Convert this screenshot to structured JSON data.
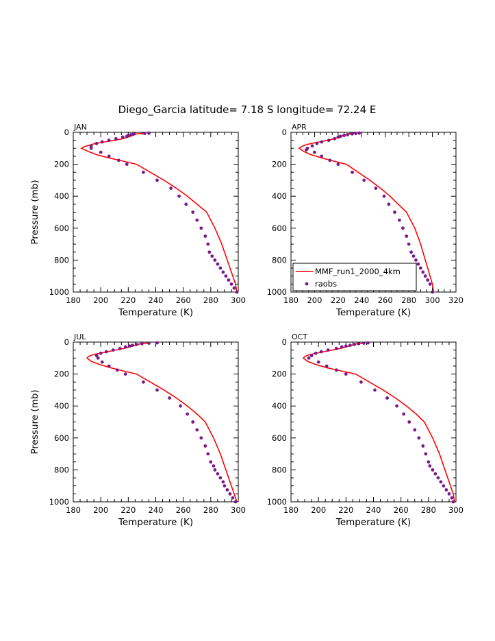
{
  "figure": {
    "title": "Diego_Garcia  latitude= 7.18 S longitude= 72.24 E"
  },
  "colors": {
    "model": "#ff0000",
    "obs": "#7a1a8a",
    "axis": "#000000"
  },
  "chart_data": [
    {
      "type": "line",
      "panel": "JAN",
      "xlabel": "Temperature (K)",
      "ylabel": "Pressure (mb)",
      "xlim": [
        180,
        300
      ],
      "ylim": [
        0,
        1000
      ],
      "y_inverted": true,
      "xticks": [
        180,
        200,
        220,
        240,
        260,
        280,
        300
      ],
      "yticks": [
        0,
        200,
        400,
        600,
        800,
        1000
      ],
      "legend": null,
      "series": [
        {
          "name": "MMF_run1_2000_4km",
          "style": "line",
          "temperature": [
            232,
            226,
            223,
            220,
            216,
            210,
            203,
            196,
            192,
            188,
            186,
            191,
            197,
            206,
            216,
            226,
            236,
            246,
            255,
            263,
            270,
            277,
            283,
            288,
            292,
            296,
            298,
            299
          ],
          "pressure": [
            5,
            10,
            20,
            30,
            40,
            50,
            60,
            70,
            80,
            90,
            100,
            120,
            140,
            160,
            180,
            200,
            250,
            300,
            350,
            400,
            450,
            500,
            600,
            700,
            800,
            900,
            950,
            1000
          ]
        },
        {
          "name": "raobs",
          "style": "points",
          "temperature": [
            235,
            232,
            224,
            222,
            220,
            219,
            216,
            211,
            206,
            201,
            197,
            193,
            193,
            200,
            206,
            213,
            219,
            231,
            241,
            251,
            257,
            262,
            267,
            270,
            273,
            276,
            278,
            279,
            281,
            283,
            285,
            287,
            289,
            291,
            293,
            295,
            297,
            299
          ],
          "pressure": [
            5,
            7,
            10,
            15,
            20,
            25,
            30,
            40,
            50,
            60,
            70,
            85,
            100,
            125,
            150,
            175,
            200,
            250,
            300,
            350,
            400,
            450,
            500,
            550,
            600,
            650,
            700,
            750,
            775,
            800,
            825,
            850,
            875,
            900,
            925,
            950,
            975,
            1000
          ]
        }
      ]
    },
    {
      "type": "line",
      "panel": "APR",
      "xlabel": "Temperature (K)",
      "ylabel": "",
      "xlim": [
        180,
        320
      ],
      "ylim": [
        0,
        1000
      ],
      "y_inverted": true,
      "xticks": [
        180,
        200,
        220,
        240,
        260,
        280,
        300,
        320
      ],
      "yticks": [
        0,
        200,
        400,
        600,
        800,
        1000
      ],
      "legend": "bottom-left",
      "series": [
        {
          "name": "MMF_run1_2000_4km",
          "style": "line",
          "temperature": [
            234,
            228,
            224,
            221,
            217,
            211,
            204,
            197,
            192,
            189,
            187,
            191,
            197,
            206,
            216,
            227,
            237,
            247,
            256,
            264,
            271,
            278,
            285,
            290,
            294,
            298,
            300,
            301
          ],
          "pressure": [
            5,
            10,
            20,
            30,
            40,
            50,
            60,
            70,
            80,
            90,
            100,
            120,
            140,
            160,
            180,
            200,
            250,
            300,
            350,
            400,
            450,
            500,
            600,
            700,
            800,
            900,
            950,
            1000
          ]
        },
        {
          "name": "raobs",
          "style": "points",
          "temperature": [
            238,
            235,
            232,
            228,
            225,
            222,
            220,
            217,
            212,
            206,
            202,
            198,
            194,
            193,
            200,
            206,
            213,
            220,
            232,
            242,
            252,
            259,
            263,
            268,
            272,
            275,
            278,
            280,
            282,
            284,
            286,
            288,
            290,
            292,
            294,
            296,
            298,
            300
          ],
          "pressure": [
            5,
            7,
            10,
            15,
            20,
            25,
            30,
            40,
            50,
            60,
            70,
            85,
            100,
            110,
            125,
            150,
            175,
            200,
            250,
            300,
            350,
            400,
            450,
            500,
            550,
            600,
            650,
            700,
            750,
            775,
            800,
            825,
            850,
            875,
            900,
            925,
            950,
            1000
          ]
        }
      ]
    },
    {
      "type": "line",
      "panel": "JUL",
      "xlabel": "Temperature (K)",
      "ylabel": "Pressure (mb)",
      "xlim": [
        180,
        300
      ],
      "ylim": [
        0,
        1000
      ],
      "y_inverted": true,
      "xticks": [
        180,
        200,
        220,
        240,
        260,
        280,
        300
      ],
      "yticks": [
        0,
        200,
        400,
        600,
        800,
        1000
      ],
      "legend": null,
      "series": [
        {
          "name": "MMF_run1_2000_4km",
          "style": "line",
          "temperature": [
            235,
            229,
            225,
            221,
            217,
            211,
            205,
            199,
            194,
            191,
            190,
            193,
            199,
            207,
            216,
            226,
            236,
            246,
            255,
            263,
            270,
            276,
            282,
            287,
            291,
            295,
            297,
            299
          ],
          "pressure": [
            5,
            10,
            20,
            30,
            40,
            50,
            60,
            70,
            80,
            90,
            100,
            120,
            140,
            160,
            180,
            200,
            250,
            300,
            350,
            400,
            450,
            500,
            600,
            700,
            800,
            900,
            950,
            1000
          ]
        },
        {
          "name": "raobs",
          "style": "points",
          "temperature": [
            241,
            235,
            230,
            226,
            223,
            221,
            218,
            214,
            209,
            204,
            200,
            197,
            198,
            201,
            206,
            212,
            218,
            231,
            241,
            250,
            258,
            263,
            267,
            270,
            273,
            276,
            278,
            280,
            282,
            283,
            285,
            287,
            289,
            290,
            292,
            294,
            296,
            298
          ],
          "pressure": [
            5,
            7,
            10,
            15,
            20,
            25,
            30,
            40,
            50,
            60,
            70,
            85,
            100,
            125,
            150,
            175,
            200,
            250,
            300,
            350,
            400,
            450,
            500,
            550,
            600,
            650,
            700,
            750,
            775,
            800,
            825,
            850,
            875,
            900,
            925,
            950,
            975,
            1000
          ]
        }
      ]
    },
    {
      "type": "line",
      "panel": "OCT",
      "xlabel": "Temperature (K)",
      "ylabel": "",
      "xlim": [
        180,
        300
      ],
      "ylim": [
        0,
        1000
      ],
      "y_inverted": true,
      "xticks": [
        180,
        200,
        220,
        240,
        260,
        280,
        300
      ],
      "yticks": [
        0,
        200,
        400,
        600,
        800,
        1000
      ],
      "legend": null,
      "series": [
        {
          "name": "MMF_run1_2000_4km",
          "style": "line",
          "temperature": [
            234,
            228,
            224,
            220,
            216,
            210,
            204,
            198,
            193,
            190,
            189,
            192,
            198,
            206,
            216,
            227,
            237,
            247,
            256,
            264,
            271,
            277,
            283,
            288,
            292,
            296,
            298,
            299
          ],
          "pressure": [
            5,
            10,
            20,
            30,
            40,
            50,
            60,
            70,
            80,
            90,
            100,
            120,
            140,
            160,
            180,
            200,
            250,
            300,
            350,
            400,
            450,
            500,
            600,
            700,
            800,
            900,
            950,
            1000
          ]
        },
        {
          "name": "raobs",
          "style": "points",
          "temperature": [
            236,
            233,
            229,
            226,
            223,
            220,
            217,
            213,
            207,
            202,
            198,
            195,
            193,
            200,
            206,
            213,
            220,
            231,
            241,
            250,
            257,
            262,
            266,
            270,
            273,
            276,
            278,
            280,
            281,
            283,
            285,
            287,
            289,
            291,
            293,
            295,
            297,
            298
          ],
          "pressure": [
            5,
            7,
            10,
            15,
            20,
            25,
            30,
            40,
            50,
            60,
            70,
            85,
            100,
            125,
            150,
            175,
            200,
            250,
            300,
            350,
            400,
            450,
            500,
            550,
            600,
            650,
            700,
            750,
            775,
            800,
            825,
            850,
            875,
            900,
            925,
            950,
            975,
            1000
          ]
        }
      ]
    }
  ]
}
